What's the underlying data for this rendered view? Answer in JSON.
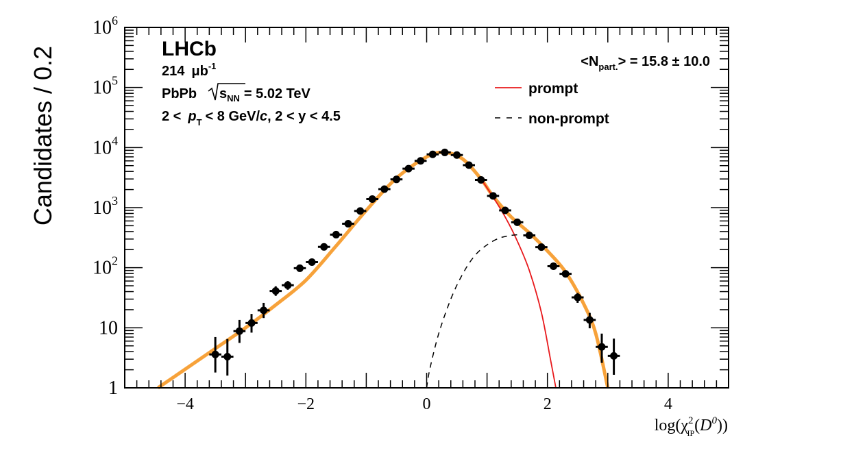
{
  "colors": {
    "fit": "#f7a23a",
    "prompt": "#e8191c",
    "nonprompt": "#000000",
    "data": "#000000"
  },
  "chart_data": {
    "type": "scatter",
    "log_y": true,
    "xlim": [
      -5,
      5
    ],
    "ylim": [
      1,
      1000000
    ],
    "ylabel": "Candidates / 0.2",
    "xlabel": {
      "pre": "log(χ",
      "sup": "2",
      "sub": "IP",
      "mid": "(",
      "var": "D",
      "var_sup": "0",
      "post": "))"
    },
    "x_ticks": [
      {
        "value": -4,
        "label": "−4"
      },
      {
        "value": -2,
        "label": "−2"
      },
      {
        "value": 0,
        "label": "0"
      },
      {
        "value": 2,
        "label": "2"
      },
      {
        "value": 4,
        "label": "4"
      }
    ],
    "y_ticks": [
      {
        "value": 1,
        "base": "1",
        "exp": ""
      },
      {
        "value": 10,
        "base": "10",
        "exp": ""
      },
      {
        "value": 100,
        "base": "10",
        "exp": "2"
      },
      {
        "value": 1000,
        "base": "10",
        "exp": "3"
      },
      {
        "value": 10000,
        "base": "10",
        "exp": "4"
      },
      {
        "value": 100000,
        "base": "10",
        "exp": "5"
      },
      {
        "value": 1000000,
        "base": "10",
        "exp": "6"
      }
    ],
    "annotations": {
      "experiment": "LHCb",
      "lumi_value": "214",
      "lumi_unit": "μb",
      "lumi_exp": "-1",
      "system": "PbPb",
      "energy_var": "s",
      "energy_sub": "NN",
      "energy_value": "= 5.02 TeV",
      "kin_a": "2 <",
      "kin_pt": "p",
      "kin_pt_sub": "T",
      "kin_b": "< 8 GeV/",
      "kin_c": "c",
      "kin_d": ", 2 < y < 4.5",
      "npart_pre": "<N",
      "npart_sub": "part.",
      "npart_post": "> = 15.8 ± 10.0"
    },
    "legend": [
      {
        "label": "prompt",
        "style": "solid",
        "color": "#e8191c"
      },
      {
        "label": "non-prompt",
        "style": "dashed",
        "color": "#000000"
      }
    ],
    "series": [
      {
        "name": "data",
        "kind": "points",
        "x_halfwidth": 0.1,
        "points": [
          {
            "x": -3.5,
            "y": 3.6,
            "lo": 1.8,
            "hi": 7.0
          },
          {
            "x": -3.3,
            "y": 3.3,
            "lo": 1.6,
            "hi": 6.5
          },
          {
            "x": -3.1,
            "y": 8.8,
            "lo": 5.6,
            "hi": 13.5
          },
          {
            "x": -2.9,
            "y": 12,
            "lo": 8.3,
            "hi": 17
          },
          {
            "x": -2.7,
            "y": 19.5,
            "lo": 14.5,
            "hi": 26
          },
          {
            "x": -2.5,
            "y": 41,
            "lo": 34,
            "hi": 49
          },
          {
            "x": -2.3,
            "y": 51,
            "lo": 43,
            "hi": 60
          },
          {
            "x": -2.1,
            "y": 98,
            "lo": 88,
            "hi": 109
          },
          {
            "x": -1.9,
            "y": 124,
            "lo": 113,
            "hi": 136
          },
          {
            "x": -1.7,
            "y": 222,
            "lo": 207,
            "hi": 237
          },
          {
            "x": -1.5,
            "y": 355,
            "lo": 336,
            "hi": 375
          },
          {
            "x": -1.3,
            "y": 540,
            "lo": 517,
            "hi": 563
          },
          {
            "x": -1.1,
            "y": 880,
            "lo": 850,
            "hi": 910
          },
          {
            "x": -0.9,
            "y": 1390,
            "lo": 1353,
            "hi": 1427
          },
          {
            "x": -0.7,
            "y": 2030,
            "lo": 1985,
            "hi": 2075
          },
          {
            "x": -0.5,
            "y": 2950,
            "lo": 2896,
            "hi": 3004
          },
          {
            "x": -0.3,
            "y": 4450,
            "lo": 4383,
            "hi": 4517
          },
          {
            "x": -0.1,
            "y": 6000,
            "lo": 5923,
            "hi": 6077
          },
          {
            "x": 0.1,
            "y": 7700,
            "lo": 7612,
            "hi": 7788
          },
          {
            "x": 0.3,
            "y": 8300,
            "lo": 8209,
            "hi": 8391
          },
          {
            "x": 0.5,
            "y": 7500,
            "lo": 7413,
            "hi": 7587
          },
          {
            "x": 0.7,
            "y": 5100,
            "lo": 5029,
            "hi": 5171
          },
          {
            "x": 0.9,
            "y": 2900,
            "lo": 2846,
            "hi": 2954
          },
          {
            "x": 1.1,
            "y": 1570,
            "lo": 1530,
            "hi": 1610
          },
          {
            "x": 1.3,
            "y": 900,
            "lo": 870,
            "hi": 930
          },
          {
            "x": 1.5,
            "y": 570,
            "lo": 546,
            "hi": 594
          },
          {
            "x": 1.7,
            "y": 345,
            "lo": 326,
            "hi": 364
          },
          {
            "x": 1.9,
            "y": 220,
            "lo": 205,
            "hi": 235
          },
          {
            "x": 2.1,
            "y": 106,
            "lo": 96,
            "hi": 116
          },
          {
            "x": 2.3,
            "y": 79,
            "lo": 70,
            "hi": 88
          },
          {
            "x": 2.5,
            "y": 32,
            "lo": 26,
            "hi": 38
          },
          {
            "x": 2.7,
            "y": 13.5,
            "lo": 9.8,
            "hi": 17.7
          },
          {
            "x": 2.9,
            "y": 4.8,
            "lo": 2.6,
            "hi": 8.0
          },
          {
            "x": 3.1,
            "y": 3.4,
            "lo": 1.65,
            "hi": 6.6
          }
        ]
      },
      {
        "name": "total fit",
        "kind": "line",
        "color": "#f7a23a",
        "points": [
          {
            "x": -4.45,
            "y": 1
          },
          {
            "x": -3.5,
            "y": 4.5
          },
          {
            "x": -3.0,
            "y": 10
          },
          {
            "x": -2.5,
            "y": 24
          },
          {
            "x": -2.0,
            "y": 62
          },
          {
            "x": -1.5,
            "y": 230
          },
          {
            "x": -1.0,
            "y": 900
          },
          {
            "x": -0.5,
            "y": 3100
          },
          {
            "x": 0.0,
            "y": 7000
          },
          {
            "x": 0.3,
            "y": 8300
          },
          {
            "x": 0.6,
            "y": 6400
          },
          {
            "x": 0.9,
            "y": 3000
          },
          {
            "x": 1.1,
            "y": 1550
          },
          {
            "x": 1.4,
            "y": 700
          },
          {
            "x": 1.7,
            "y": 380
          },
          {
            "x": 2.0,
            "y": 190
          },
          {
            "x": 2.3,
            "y": 85
          },
          {
            "x": 2.6,
            "y": 25
          },
          {
            "x": 2.8,
            "y": 8
          },
          {
            "x": 3.0,
            "y": 1
          }
        ]
      },
      {
        "name": "prompt",
        "kind": "line",
        "color": "#e8191c",
        "points": [
          {
            "x": 0.9,
            "y": 3000
          },
          {
            "x": 1.1,
            "y": 1500
          },
          {
            "x": 1.3,
            "y": 700
          },
          {
            "x": 1.5,
            "y": 280
          },
          {
            "x": 1.7,
            "y": 90
          },
          {
            "x": 1.9,
            "y": 18
          },
          {
            "x": 2.05,
            "y": 3
          },
          {
            "x": 2.14,
            "y": 1
          }
        ]
      },
      {
        "name": "non-prompt",
        "kind": "line",
        "color": "#000000",
        "points": [
          {
            "x": 0.0,
            "y": 1
          },
          {
            "x": 0.05,
            "y": 2
          },
          {
            "x": 0.2,
            "y": 8
          },
          {
            "x": 0.4,
            "y": 30
          },
          {
            "x": 0.6,
            "y": 80
          },
          {
            "x": 0.8,
            "y": 160
          },
          {
            "x": 1.0,
            "y": 240
          },
          {
            "x": 1.2,
            "y": 310
          },
          {
            "x": 1.4,
            "y": 345
          },
          {
            "x": 1.55,
            "y": 355
          }
        ]
      }
    ]
  }
}
